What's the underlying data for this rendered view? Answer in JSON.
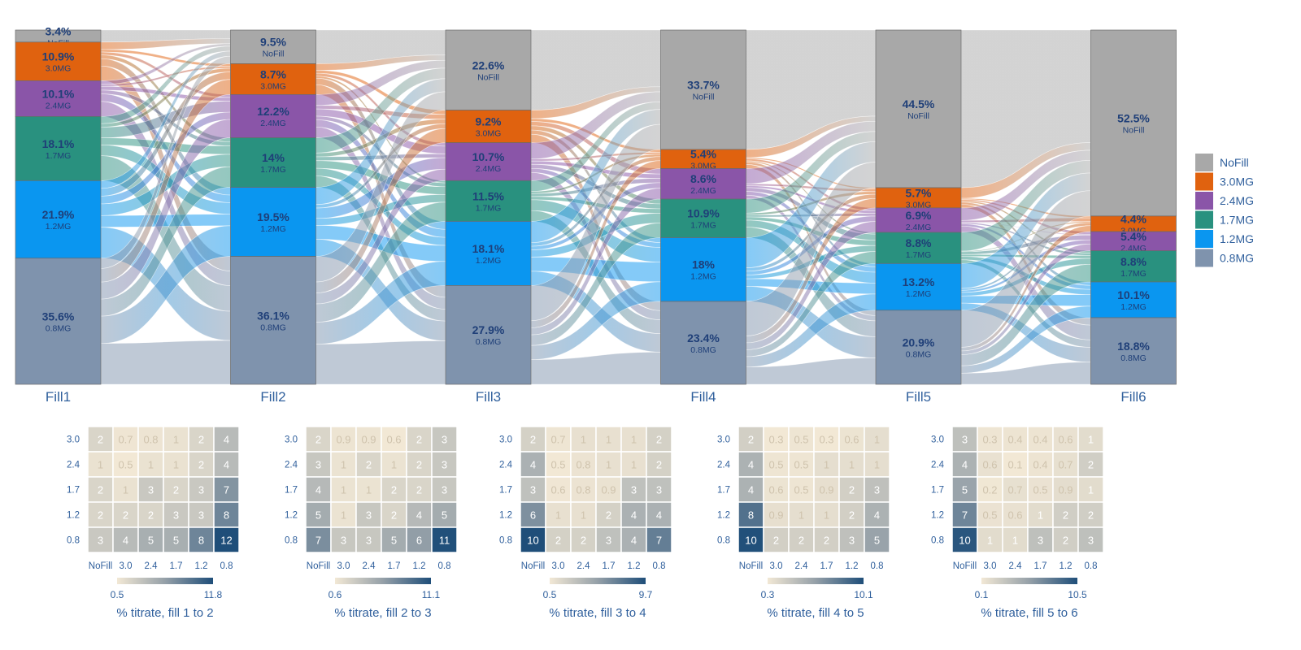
{
  "chart_data": [
    {
      "type": "sankey",
      "stages": [
        "Fill1",
        "Fill2",
        "Fill3",
        "Fill4",
        "Fill5",
        "Fill6"
      ],
      "categories": [
        "NoFill",
        "3.0MG",
        "2.4MG",
        "1.7MG",
        "1.2MG",
        "0.8MG"
      ],
      "colors": {
        "NoFill": "#a8a8a8",
        "3.0MG": "#e0620f",
        "2.4MG": "#8a55a8",
        "1.7MG": "#29917f",
        "1.2MG": "#0a96f0",
        "0.8MG": "#7f93ad"
      },
      "percentages": [
        [
          3.4,
          10.9,
          10.1,
          18.1,
          21.9,
          35.6
        ],
        [
          9.5,
          8.7,
          12.2,
          14,
          19.5,
          36.1
        ],
        [
          22.6,
          9.2,
          10.7,
          11.5,
          18.1,
          27.9
        ],
        [
          33.7,
          5.4,
          8.6,
          10.9,
          18,
          23.4
        ],
        [
          44.5,
          5.7,
          6.9,
          8.8,
          13.2,
          20.9
        ],
        [
          52.5,
          4.4,
          5.4,
          8.8,
          10.1,
          18.8
        ]
      ],
      "percent_labels": [
        [
          "3.4%",
          "10.9%",
          "10.1%",
          "18.1%",
          "21.9%",
          "35.6%"
        ],
        [
          "9.5%",
          "8.7%",
          "12.2%",
          "14%",
          "19.5%",
          "36.1%"
        ],
        [
          "22.6%",
          "9.2%",
          "10.7%",
          "11.5%",
          "18.1%",
          "27.9%"
        ],
        [
          "33.7%",
          "5.4%",
          "8.6%",
          "10.9%",
          "18%",
          "23.4%"
        ],
        [
          "44.5%",
          "5.7%",
          "6.9%",
          "8.8%",
          "13.2%",
          "20.9%"
        ],
        [
          "52.5%",
          "4.4%",
          "5.4%",
          "8.8%",
          "10.1%",
          "18.8%"
        ]
      ],
      "legend": {
        "placement": "right",
        "items": [
          "NoFill",
          "3.0MG",
          "2.4MG",
          "1.7MG",
          "1.2MG",
          "0.8MG"
        ]
      }
    },
    {
      "type": "heatmap",
      "title": "% titrate, fill 1 to 2",
      "x_categories": [
        "NoFill",
        "3.0",
        "2.4",
        "1.7",
        "1.2",
        "0.8"
      ],
      "y_categories": [
        "3.0",
        "2.4",
        "1.7",
        "1.2",
        "0.8"
      ],
      "values": [
        [
          "2",
          "0.7",
          "0.8",
          "1",
          "2",
          "4"
        ],
        [
          "1",
          "0.5",
          "1",
          "1",
          "2",
          "4"
        ],
        [
          "2",
          "1",
          "3",
          "2",
          "3",
          "7"
        ],
        [
          "2",
          "2",
          "2",
          "3",
          "3",
          "8"
        ],
        [
          "3",
          "4",
          "5",
          "5",
          "8",
          "12"
        ]
      ],
      "scale": {
        "min": 0.5,
        "max": 11.8,
        "min_label": "0.5",
        "max_label": "11.8"
      }
    },
    {
      "type": "heatmap",
      "title": "% titrate, fill 2 to 3",
      "x_categories": [
        "NoFill",
        "3.0",
        "2.4",
        "1.7",
        "1.2",
        "0.8"
      ],
      "y_categories": [
        "3.0",
        "2.4",
        "1.7",
        "1.2",
        "0.8"
      ],
      "values": [
        [
          "2",
          "0.9",
          "0.9",
          "0.6",
          "2",
          "3"
        ],
        [
          "3",
          "1",
          "2",
          "1",
          "2",
          "3"
        ],
        [
          "4",
          "1",
          "1",
          "2",
          "2",
          "3"
        ],
        [
          "5",
          "1",
          "3",
          "2",
          "4",
          "5"
        ],
        [
          "7",
          "3",
          "3",
          "5",
          "6",
          "11"
        ]
      ],
      "scale": {
        "min": 0.6,
        "max": 11.1,
        "min_label": "0.6",
        "max_label": "11.1"
      }
    },
    {
      "type": "heatmap",
      "title": "% titrate, fill 3 to 4",
      "x_categories": [
        "NoFill",
        "3.0",
        "2.4",
        "1.7",
        "1.2",
        "0.8"
      ],
      "y_categories": [
        "3.0",
        "2.4",
        "1.7",
        "1.2",
        "0.8"
      ],
      "values": [
        [
          "2",
          "0.7",
          "1",
          "1",
          "1",
          "2"
        ],
        [
          "4",
          "0.5",
          "0.8",
          "1",
          "1",
          "2"
        ],
        [
          "3",
          "0.6",
          "0.8",
          "0.9",
          "3",
          "3"
        ],
        [
          "6",
          "1",
          "1",
          "2",
          "4",
          "4"
        ],
        [
          "10",
          "2",
          "2",
          "3",
          "4",
          "7"
        ]
      ],
      "scale": {
        "min": 0.5,
        "max": 9.7,
        "min_label": "0.5",
        "max_label": "9.7"
      }
    },
    {
      "type": "heatmap",
      "title": "% titrate, fill 4 to 5",
      "x_categories": [
        "NoFill",
        "3.0",
        "2.4",
        "1.7",
        "1.2",
        "0.8"
      ],
      "y_categories": [
        "3.0",
        "2.4",
        "1.7",
        "1.2",
        "0.8"
      ],
      "values": [
        [
          "2",
          "0.3",
          "0.5",
          "0.3",
          "0.6",
          "1"
        ],
        [
          "4",
          "0.5",
          "0.5",
          "1",
          "1",
          "1"
        ],
        [
          "4",
          "0.6",
          "0.5",
          "0.9",
          "2",
          "3"
        ],
        [
          "8",
          "0.9",
          "1",
          "1",
          "2",
          "4"
        ],
        [
          "10",
          "2",
          "2",
          "2",
          "3",
          "5"
        ]
      ],
      "scale": {
        "min": 0.3,
        "max": 10.1,
        "min_label": "0.3",
        "max_label": "10.1"
      }
    },
    {
      "type": "heatmap",
      "title": "% titrate, fill 5 to 6",
      "x_categories": [
        "NoFill",
        "3.0",
        "2.4",
        "1.7",
        "1.2",
        "0.8"
      ],
      "y_categories": [
        "3.0",
        "2.4",
        "1.7",
        "1.2",
        "0.8"
      ],
      "values": [
        [
          "3",
          "0.3",
          "0.4",
          "0.4",
          "0.6",
          "1"
        ],
        [
          "4",
          "0.6",
          "0.1",
          "0.4",
          "0.7",
          "2"
        ],
        [
          "5",
          "0.2",
          "0.7",
          "0.5",
          "0.9",
          "1"
        ],
        [
          "7",
          "0.5",
          "0.6",
          "1",
          "2",
          "2"
        ],
        [
          "10",
          "1",
          "1",
          "3",
          "2",
          "3"
        ]
      ],
      "scale": {
        "min": 0.1,
        "max": 10.5,
        "min_label": "0.1",
        "max_label": "10.5"
      }
    }
  ]
}
